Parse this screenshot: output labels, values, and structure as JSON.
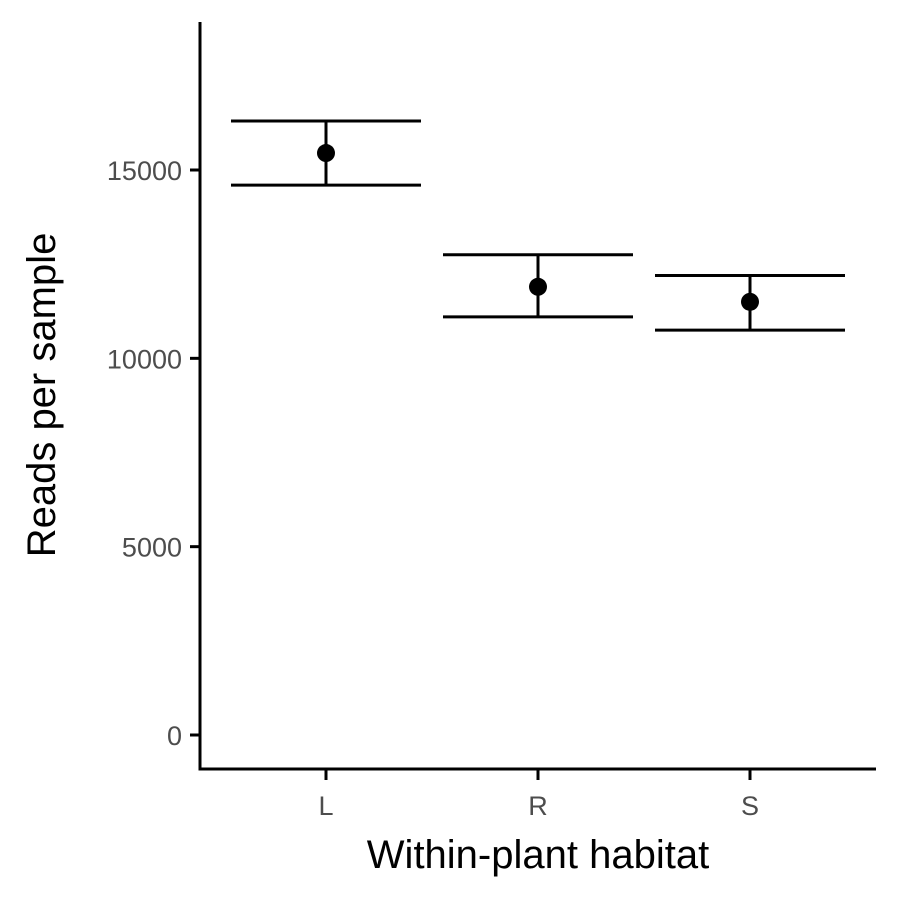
{
  "chart_data": {
    "type": "scatter",
    "title": "",
    "xlabel": "Within-plant habitat",
    "ylabel": "Reads per sample",
    "categories": [
      "L",
      "R",
      "S"
    ],
    "points": [
      {
        "category": "L",
        "y": 15450,
        "ymin": 14600,
        "ymax": 16300
      },
      {
        "category": "R",
        "y": 11900,
        "ymin": 11100,
        "ymax": 12750
      },
      {
        "category": "S",
        "y": 11500,
        "ymin": 10750,
        "ymax": 12200
      }
    ],
    "yticks": [
      0,
      5000,
      10000,
      15000
    ],
    "ytick_labels": [
      "0",
      "5000",
      "10000",
      "15000"
    ],
    "ylim": [
      -800,
      19000
    ],
    "grid": false,
    "legend": "none"
  }
}
